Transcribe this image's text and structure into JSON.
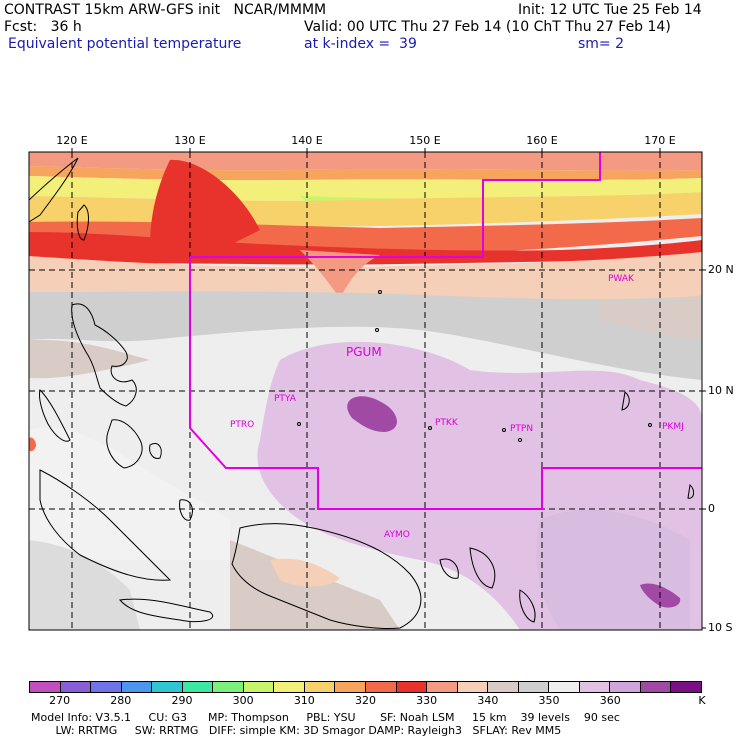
{
  "header": {
    "line1_left": "CONTRAST 15km ARW-GFS init   NCAR/MMMM",
    "line1_right": "Init: 12 UTC Tue 25 Feb 14",
    "line2_left": "Fcst:   36 h",
    "line2_right": "Valid: 00 UTC Thu 27 Feb 14 (10 ChT Thu 27 Feb 14)",
    "line3_left": "Equivalent potential temperature",
    "line3_mid": "at k-index =  39",
    "line3_right": "sm= 2"
  },
  "lon_ticks": [
    "120 E",
    "130 E",
    "140 E",
    "150 E",
    "160 E",
    "170 E"
  ],
  "lat_ticks": [
    "20 N",
    "10 N",
    "0",
    "10 S"
  ],
  "stations": [
    "PGUM",
    "PTYA",
    "PTRO",
    "PTKK",
    "PTPN",
    "PKMJ",
    "PWAK",
    "AYMO"
  ],
  "colorbar": {
    "labels": [
      "270",
      "280",
      "290",
      "300",
      "310",
      "320",
      "330",
      "340",
      "350",
      "360",
      "K"
    ],
    "colors": [
      "#c14fc1",
      "#8a5fd6",
      "#6e74e6",
      "#4c96ee",
      "#2fc6d2",
      "#3ee6a4",
      "#7df07c",
      "#c8f46c",
      "#f2f07a",
      "#f7d26a",
      "#f7a55e",
      "#f26a4a",
      "#e8332c",
      "#f49a82",
      "#f6cfb8",
      "#d9cbc6",
      "#cfcfcf",
      "#eeeeee",
      "#e2c2e4",
      "#cfa5da",
      "#a04aa6",
      "#7a0f86"
    ]
  },
  "footer": {
    "line1": "Model Info: V3.5.1     CU: G3      MP: Thompson     PBL: YSU       SF: Noah LSM     15 km    39 levels    90 sec",
    "line2": "       LW: RRTMG     SW: RRTMG   DIFF: simple KM: 3D Smagor DAMP: Rayleigh3   SFLAY: Rev MM5"
  }
}
